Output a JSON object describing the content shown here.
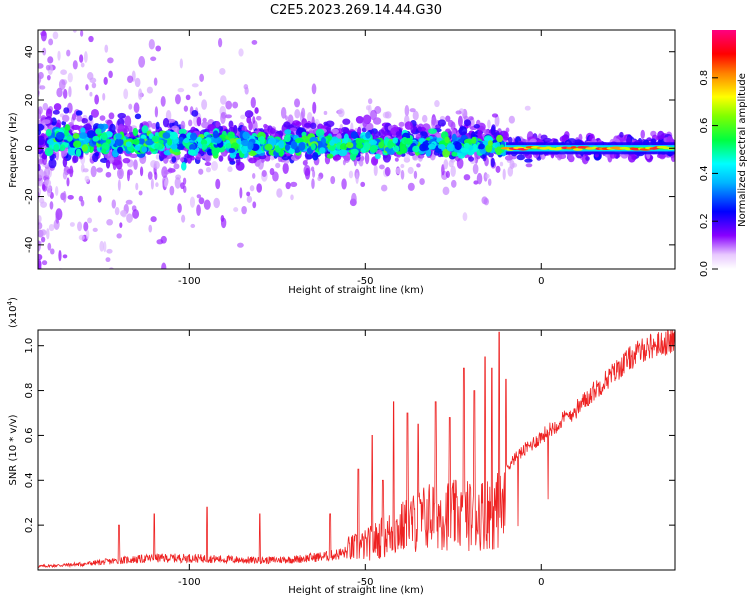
{
  "page_title": "C2E5.2023.269.14.44.G30",
  "chart_data": [
    {
      "type": "heatmap",
      "xlabel": "Height of straight line (km)",
      "ylabel": "Frequency (Hz)",
      "xlim": [
        -143,
        38
      ],
      "ylim": [
        -50,
        49
      ],
      "xticks": [
        -100,
        -50,
        0
      ],
      "yticks": [
        -40,
        -20,
        0,
        20,
        40
      ],
      "grid": false,
      "description_band": "narrow band near 0 Hz, broadening to ~±8 Hz at low heights, high amplitude (red) above ~-10 km",
      "colorbar": {
        "label": "Normalized spectral amplitude",
        "range": [
          0,
          1
        ],
        "ticks": [
          0.0,
          0.2,
          0.4,
          0.6,
          0.8
        ],
        "colormap": [
          "#ffffff",
          "#8800ff",
          "#0000ff",
          "#00ffff",
          "#00ff00",
          "#ffff00",
          "#ff0000",
          "#ff0099"
        ]
      }
    },
    {
      "type": "line",
      "xlabel": "Height of straight line (km)",
      "ylabel": "SNR (10 * v/v)",
      "multiplier": "(x10",
      "multiplier_exp": "4",
      "multiplier_close": ")",
      "xlim": [
        -143,
        38
      ],
      "ylim": [
        0,
        1.07
      ],
      "xticks": [
        -100,
        -50,
        0
      ],
      "yticks": [
        0.2,
        0.4,
        0.6,
        0.8,
        1.0
      ],
      "ytick_labels": [
        "0.2",
        "0.4",
        "0.6",
        "0.8",
        "1.0"
      ],
      "series": [
        {
          "color": "#ee2222",
          "envelope_x": [
            -143,
            -130,
            -120,
            -110,
            -100,
            -90,
            -80,
            -70,
            -60,
            -50,
            -45,
            -40,
            -35,
            -30,
            -25,
            -20,
            -15,
            -10,
            -5,
            0,
            5,
            10,
            15,
            20,
            25,
            30,
            38
          ],
          "envelope_y": [
            0.03,
            0.05,
            0.08,
            0.1,
            0.1,
            0.09,
            0.08,
            0.09,
            0.12,
            0.18,
            0.24,
            0.3,
            0.36,
            0.42,
            0.4,
            0.4,
            0.42,
            0.45,
            0.52,
            0.58,
            0.64,
            0.7,
            0.78,
            0.85,
            0.92,
            0.97,
            1.0
          ],
          "spike_x": [
            -120,
            -110,
            -95,
            -80,
            -60,
            -52,
            -48,
            -45,
            -42,
            -38,
            -35,
            -30,
            -26,
            -22,
            -19,
            -16,
            -14,
            -12,
            -10
          ],
          "spike_y": [
            0.2,
            0.25,
            0.28,
            0.25,
            0.25,
            0.45,
            0.6,
            0.4,
            0.75,
            0.7,
            0.65,
            0.75,
            0.68,
            0.9,
            0.8,
            0.95,
            0.9,
            1.06,
            0.85
          ]
        }
      ]
    }
  ]
}
